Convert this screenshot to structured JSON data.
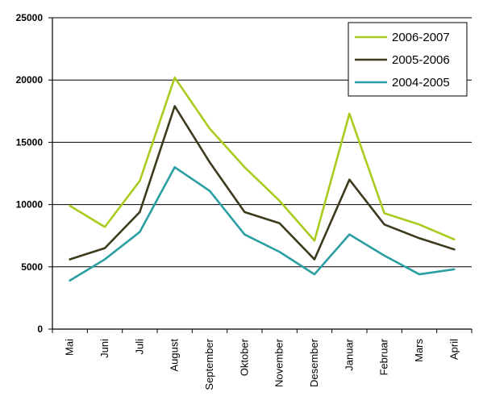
{
  "chart_data": {
    "type": "line",
    "title": "",
    "xlabel": "",
    "ylabel": "",
    "categories": [
      "Mai",
      "Juni",
      "Juli",
      "August",
      "September",
      "Oktober",
      "November",
      "Desember",
      "Januar",
      "Februar",
      "Mars",
      "April"
    ],
    "ylim": [
      0,
      25000
    ],
    "yticks": [
      "0",
      "5000",
      "10000",
      "15000",
      "20000",
      "25000"
    ],
    "grid": "horizontal",
    "legend_position": "top-right",
    "series": [
      {
        "name": "2006-2007",
        "color": "#a8cc1e",
        "values": [
          9900,
          8200,
          11900,
          20200,
          16100,
          13000,
          10300,
          7100,
          17300,
          9300,
          8400,
          7200
        ]
      },
      {
        "name": "2005-2006",
        "color": "#3d3a1e",
        "values": [
          5600,
          6500,
          9400,
          17900,
          13400,
          9400,
          8500,
          5600,
          12000,
          8400,
          7300,
          6400
        ]
      },
      {
        "name": "2004-2005",
        "color": "#2a9ea3",
        "values": [
          3900,
          5600,
          7800,
          13000,
          11100,
          7600,
          6200,
          4400,
          7600,
          5900,
          4400,
          4800
        ]
      }
    ]
  }
}
